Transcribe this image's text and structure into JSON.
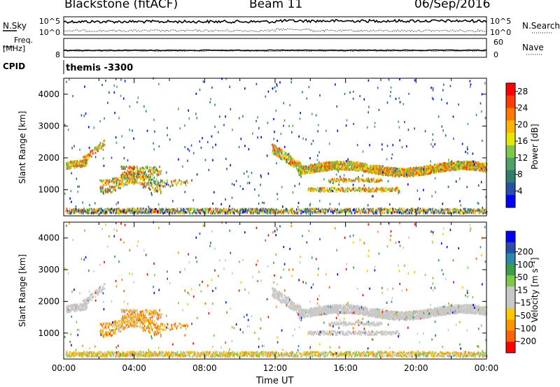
{
  "header": {
    "title": "Blackstone (fitACF)",
    "beam": "Beam 11",
    "date": "06/Sep/2016"
  },
  "strip": {
    "nsky_label": "N.Sky",
    "nsearch_label": "N.Search",
    "noise_ticks_left": [
      "10^5",
      "10^0"
    ],
    "noise_ticks_right": [
      "10^5",
      "10^0"
    ],
    "freq_label_1": "Freq.",
    "freq_label_2": "[MHz]",
    "freq_ticks": [
      "8"
    ],
    "nave_label": "Nave",
    "nave_ticks": [
      "60",
      "0"
    ],
    "cpid_label": "CPID",
    "cpid_value": "themis -3300"
  },
  "colors": {
    "power_scale": [
      "#0000ff",
      "#2a4fa8",
      "#2f7f6e",
      "#4fa06a",
      "#7dc846",
      "#e6e600",
      "#ffb400",
      "#ff7800",
      "#ff3c00",
      "#ff0000"
    ],
    "velocity_scale": [
      "#ff0000",
      "#ff6400",
      "#ff9600",
      "#ffc800",
      "#c8c8c8",
      "#c8c8c8",
      "#7dc846",
      "#3c9e46",
      "#2a8aa8",
      "#2a4fa8",
      "#0000ff"
    ],
    "ground_scatter": "#c8c8c8"
  },
  "chart_data": [
    {
      "type": "heatmap",
      "name": "power",
      "xlabel": "",
      "ylabel": "Slant Range [km]",
      "xlim": [
        0,
        24
      ],
      "ylim": [
        180,
        4500
      ],
      "yticks": [
        "1000",
        "2000",
        "3000",
        "4000"
      ],
      "colorbar_label": "Power [dB]",
      "colorbar_ticks": [
        "4",
        "8",
        "12",
        "16",
        "20",
        "24",
        "28"
      ],
      "colorbar_range": [
        0,
        30
      ]
    },
    {
      "type": "heatmap",
      "name": "velocity",
      "xlabel": "Time UT",
      "ylabel": "Slant Range [km]",
      "xlim": [
        0,
        24
      ],
      "ylim": [
        180,
        4500
      ],
      "xticks": [
        "00:00",
        "04:00",
        "08:00",
        "12:00",
        "16:00",
        "20:00",
        "00:00"
      ],
      "yticks": [
        "1000",
        "2000",
        "3000",
        "4000"
      ],
      "colorbar_label": "Velocity [m s⁻¹]",
      "colorbar_ticks": [
        "200",
        "100",
        "50",
        "15",
        "-15",
        "-50",
        "-100",
        "-200"
      ],
      "colorbar_range": [
        -250,
        250
      ]
    }
  ]
}
